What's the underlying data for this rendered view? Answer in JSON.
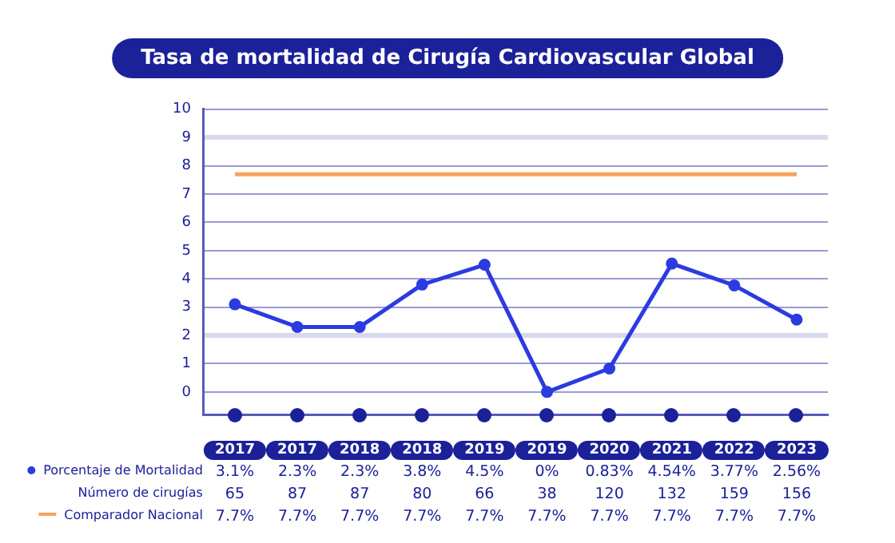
{
  "chart_data": {
    "type": "line",
    "title": "Tasa de mortalidad de Cirugía Cardiovascular Global",
    "categories": [
      "2017",
      "2017",
      "2018",
      "2018",
      "2019",
      "2019",
      "2020",
      "2021",
      "2022",
      "2023"
    ],
    "series": [
      {
        "name": "Porcentaje de Mortalidad",
        "color": "#2b3be0",
        "marker": "circle",
        "values": [
          3.1,
          2.3,
          2.3,
          3.8,
          4.5,
          0,
          0.83,
          4.54,
          3.77,
          2.56
        ],
        "value_labels": [
          "3.1%",
          "2.3%",
          "2.3%",
          "3.8%",
          "4.5%",
          "0%",
          "0.83%",
          "4.54%",
          "3.77%",
          "2.56%"
        ]
      },
      {
        "name": "Comparador Nacional",
        "color": "#f7a25c",
        "marker": "none",
        "values": [
          7.7,
          7.7,
          7.7,
          7.7,
          7.7,
          7.7,
          7.7,
          7.7,
          7.7,
          7.7
        ],
        "value_labels": [
          "7.7%",
          "7.7%",
          "7.7%",
          "7.7%",
          "7.7%",
          "7.7%",
          "7.7%",
          "7.7%",
          "7.7%",
          "7.7%"
        ]
      }
    ],
    "annotations": [
      "Número de cirugías",
      "65",
      "87",
      "87",
      "80",
      "66",
      "38",
      "120",
      "132",
      "159",
      "156"
    ],
    "ylim": [
      -0.8,
      10
    ],
    "yticks": [
      0,
      1,
      2,
      3,
      4,
      5,
      6,
      7,
      8,
      9,
      10
    ],
    "grid": "y",
    "legend": "bottom",
    "data_labels": true
  }
}
